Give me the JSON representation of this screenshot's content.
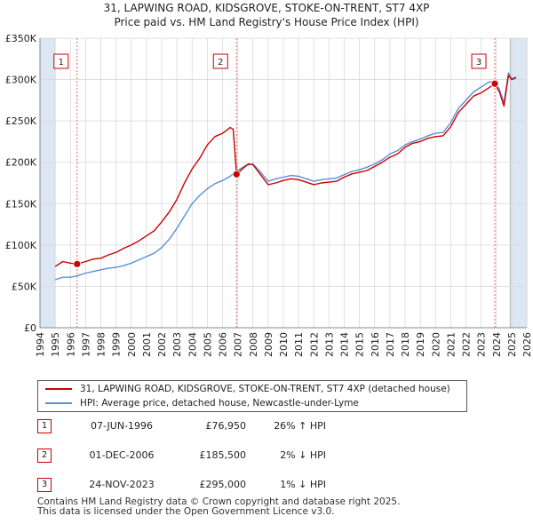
{
  "header": {
    "title_line1": "31, LAPWING ROAD, KIDSGROVE, STOKE-ON-TRENT, ST7 4XP",
    "title_line2": "Price paid vs. HM Land Registry's House Price Index (HPI)"
  },
  "colors": {
    "property": "#cc0000",
    "hpi": "#5b8fd6",
    "marker_line": "#dd6666",
    "shade": "#dde6f3",
    "grid": "#d8d8d8"
  },
  "chart_data": {
    "type": "line",
    "title": "Price paid vs. HM Land Registry's House Price Index (HPI)",
    "xlabel": "",
    "ylabel": "",
    "xlim": [
      1994,
      2026
    ],
    "ylim": [
      0,
      350000
    ],
    "x_ticks": [
      "1994",
      "1995",
      "1996",
      "1997",
      "1998",
      "1999",
      "2000",
      "2001",
      "2002",
      "2003",
      "2004",
      "2005",
      "2006",
      "2007",
      "2008",
      "2009",
      "2010",
      "2011",
      "2012",
      "2013",
      "2014",
      "2015",
      "2016",
      "2017",
      "2018",
      "2019",
      "2020",
      "2021",
      "2022",
      "2023",
      "2024",
      "2025",
      "2026"
    ],
    "y_ticks": [
      {
        "value": 0,
        "label": "£0"
      },
      {
        "value": 50000,
        "label": "£50K"
      },
      {
        "value": 100000,
        "label": "£100K"
      },
      {
        "value": 150000,
        "label": "£150K"
      },
      {
        "value": 200000,
        "label": "£200K"
      },
      {
        "value": 250000,
        "label": "£250K"
      },
      {
        "value": 300000,
        "label": "£300K"
      },
      {
        "value": 350000,
        "label": "£350K"
      }
    ],
    "shaded_ranges": [
      [
        1994,
        1995.0
      ],
      [
        2024.9,
        2026
      ]
    ],
    "series": [
      {
        "name": "31, LAPWING ROAD, KIDSGROVE, STOKE-ON-TRENT, ST7 4XP (detached house)",
        "color": "#cc0000",
        "x": [
          1995.0,
          1995.5,
          1996.0,
          1996.44,
          1997.0,
          1997.5,
          1998.0,
          1998.5,
          1999.0,
          1999.5,
          2000.0,
          2000.5,
          2001.0,
          2001.5,
          2002.0,
          2002.5,
          2003.0,
          2003.5,
          2004.0,
          2004.5,
          2005.0,
          2005.5,
          2006.0,
          2006.5,
          2006.7,
          2006.92,
          2007.3,
          2007.7,
          2008.0,
          2008.5,
          2009.0,
          2009.5,
          2010.0,
          2010.5,
          2011.0,
          2011.5,
          2012.0,
          2012.5,
          2013.0,
          2013.5,
          2014.0,
          2014.5,
          2015.0,
          2015.5,
          2016.0,
          2016.5,
          2017.0,
          2017.5,
          2018.0,
          2018.5,
          2019.0,
          2019.5,
          2020.0,
          2020.5,
          2021.0,
          2021.5,
          2022.0,
          2022.5,
          2023.0,
          2023.5,
          2023.9,
          2024.2,
          2024.5,
          2024.8,
          2025.0,
          2025.3
        ],
        "y": [
          74000,
          80000,
          78000,
          76950,
          80000,
          83000,
          84000,
          88000,
          91000,
          96000,
          100000,
          105000,
          111000,
          117000,
          128000,
          140000,
          155000,
          175000,
          192000,
          205000,
          221000,
          231000,
          235000,
          242000,
          240000,
          185500,
          192000,
          198000,
          197000,
          185000,
          173000,
          175000,
          178000,
          180000,
          179000,
          176000,
          173000,
          175000,
          176000,
          177000,
          182000,
          186000,
          188000,
          190000,
          195000,
          200000,
          206000,
          210000,
          218000,
          223000,
          225000,
          229000,
          231000,
          232000,
          243000,
          260000,
          270000,
          280000,
          284000,
          290000,
          295000,
          285000,
          268000,
          305000,
          300000,
          302000
        ]
      },
      {
        "name": "HPI: Average price, detached house, Newcastle-under-Lyme",
        "color": "#5b8fd6",
        "x": [
          1995.0,
          1995.5,
          1996.0,
          1996.5,
          1997.0,
          1997.5,
          1998.0,
          1998.5,
          1999.0,
          1999.5,
          2000.0,
          2000.5,
          2001.0,
          2001.5,
          2002.0,
          2002.5,
          2003.0,
          2003.5,
          2004.0,
          2004.5,
          2005.0,
          2005.5,
          2006.0,
          2006.5,
          2007.0,
          2007.5,
          2008.0,
          2008.5,
          2009.0,
          2009.5,
          2010.0,
          2010.5,
          2011.0,
          2011.5,
          2012.0,
          2012.5,
          2013.0,
          2013.5,
          2014.0,
          2014.5,
          2015.0,
          2015.5,
          2016.0,
          2016.5,
          2017.0,
          2017.5,
          2018.0,
          2018.5,
          2019.0,
          2019.5,
          2020.0,
          2020.5,
          2021.0,
          2021.5,
          2022.0,
          2022.5,
          2023.0,
          2023.5,
          2023.9,
          2024.2,
          2024.5,
          2024.8,
          2025.0,
          2025.3
        ],
        "y": [
          58000,
          61000,
          61000,
          63000,
          66000,
          68000,
          70000,
          72000,
          73000,
          75000,
          78000,
          82000,
          86000,
          90000,
          97000,
          107000,
          120000,
          135000,
          150000,
          160000,
          168000,
          174000,
          178000,
          183000,
          190000,
          196000,
          198000,
          188000,
          177000,
          180000,
          182000,
          184000,
          183000,
          180000,
          177000,
          179000,
          180000,
          181000,
          185000,
          189000,
          191000,
          194000,
          198000,
          203000,
          210000,
          214000,
          221000,
          225000,
          228000,
          232000,
          235000,
          236000,
          248000,
          265000,
          275000,
          285000,
          291000,
          297000,
          298000,
          288000,
          272000,
          308000,
          301000,
          303000
        ]
      }
    ],
    "sales": [
      {
        "label": "1",
        "x": 1996.44,
        "y": 76950
      },
      {
        "label": "2",
        "x": 2006.92,
        "y": 185500
      },
      {
        "label": "3",
        "x": 2023.9,
        "y": 295000
      }
    ],
    "legend_position": "below"
  },
  "legend": {
    "property_label": "31, LAPWING ROAD, KIDSGROVE, STOKE-ON-TRENT, ST7 4XP (detached house)",
    "hpi_label": "HPI: Average price, detached house, Newcastle-under-Lyme"
  },
  "sales_table": [
    {
      "num": "1",
      "date": "07-JUN-1996",
      "price": "£76,950",
      "hpi": "26% ↑ HPI"
    },
    {
      "num": "2",
      "date": "01-DEC-2006",
      "price": "£185,500",
      "hpi": "2% ↓ HPI"
    },
    {
      "num": "3",
      "date": "24-NOV-2023",
      "price": "£295,000",
      "hpi": "1% ↓ HPI"
    }
  ],
  "footer": {
    "line1": "Contains HM Land Registry data © Crown copyright and database right 2025.",
    "line2": "This data is licensed under the Open Government Licence v3.0."
  }
}
